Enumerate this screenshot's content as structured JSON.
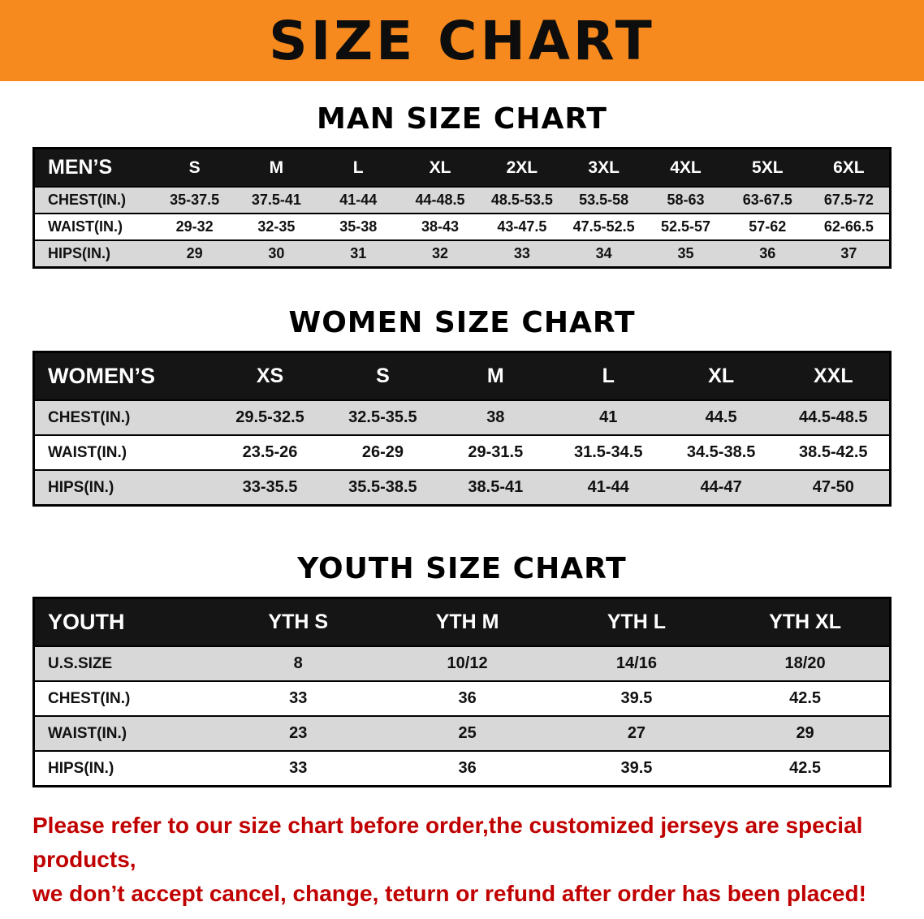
{
  "banner": {
    "title": "SIZE CHART"
  },
  "colors": {
    "banner_bg": "#F68A1E",
    "header_bg": "#151515",
    "row_shade": "#D8D8D8",
    "footer_text": "#C00000"
  },
  "sections": [
    {
      "heading": "MAN SIZE CHART",
      "header_label": "MEN’S",
      "columns": [
        "S",
        "M",
        "L",
        "XL",
        "2XL",
        "3XL",
        "4XL",
        "5XL",
        "6XL"
      ],
      "rows": [
        {
          "label": "CHEST(IN.)",
          "values": [
            "35-37.5",
            "37.5-41",
            "41-44",
            "44-48.5",
            "48.5-53.5",
            "53.5-58",
            "58-63",
            "63-67.5",
            "67.5-72"
          ]
        },
        {
          "label": "WAIST(IN.)",
          "values": [
            "29-32",
            "32-35",
            "35-38",
            "38-43",
            "43-47.5",
            "47.5-52.5",
            "52.5-57",
            "57-62",
            "62-66.5"
          ]
        },
        {
          "label": "HIPS(IN.)",
          "values": [
            "29",
            "30",
            "31",
            "32",
            "33",
            "34",
            "35",
            "36",
            "37"
          ]
        }
      ]
    },
    {
      "heading": "WOMEN SIZE CHART",
      "header_label": "WOMEN’S",
      "columns": [
        "XS",
        "S",
        "M",
        "L",
        "XL",
        "XXL"
      ],
      "rows": [
        {
          "label": "CHEST(IN.)",
          "values": [
            "29.5-32.5",
            "32.5-35.5",
            "38",
            "41",
            "44.5",
            "44.5-48.5"
          ]
        },
        {
          "label": "WAIST(IN.)",
          "values": [
            "23.5-26",
            "26-29",
            "29-31.5",
            "31.5-34.5",
            "34.5-38.5",
            "38.5-42.5"
          ]
        },
        {
          "label": "HIPS(IN.)",
          "values": [
            "33-35.5",
            "35.5-38.5",
            "38.5-41",
            "41-44",
            "44-47",
            "47-50"
          ]
        }
      ]
    },
    {
      "heading": "YOUTH SIZE CHART",
      "header_label": "YOUTH",
      "columns": [
        "YTH S",
        "YTH M",
        "YTH L",
        "YTH XL"
      ],
      "rows": [
        {
          "label": "U.S.SIZE",
          "values": [
            "8",
            "10/12",
            "14/16",
            "18/20"
          ]
        },
        {
          "label": "CHEST(IN.)",
          "values": [
            "33",
            "36",
            "39.5",
            "42.5"
          ]
        },
        {
          "label": "WAIST(IN.)",
          "values": [
            "23",
            "25",
            "27",
            "29"
          ]
        },
        {
          "label": "HIPS(IN.)",
          "values": [
            "33",
            "36",
            "39.5",
            "42.5"
          ]
        }
      ]
    }
  ],
  "footer": {
    "line1": "Please refer to our size chart before order,the customized jerseys are special products,",
    "line2": "we don’t accept cancel, change, teturn or refund after order has been placed!"
  }
}
